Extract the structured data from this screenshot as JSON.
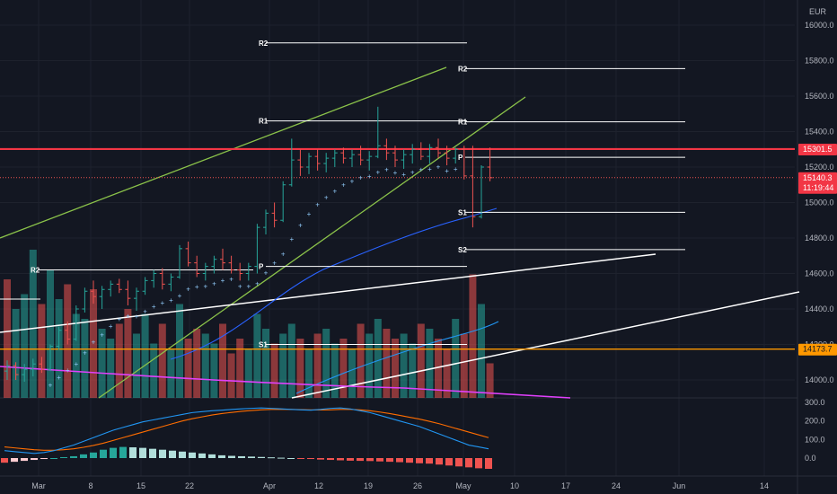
{
  "axis": {
    "currency": "EUR",
    "price_ticks": [
      "16000.0",
      "15800.0",
      "15600.0",
      "15400.0",
      "15200.0",
      "15000.0",
      "14800.0",
      "14600.0",
      "14400.0",
      "14200.0",
      "14000.0"
    ],
    "price_tick_values": [
      16000,
      15800,
      15600,
      15400,
      15200,
      15000,
      14800,
      14600,
      14400,
      14200,
      14000
    ],
    "osc_ticks": [
      "300.0",
      "200.0",
      "100.0",
      "0.0"
    ],
    "osc_tick_values": [
      300,
      200,
      100,
      0
    ],
    "date_ticks": [
      "Mar",
      "8",
      "15",
      "22",
      "Apr",
      "12",
      "19",
      "26",
      "May",
      "10",
      "17",
      "24",
      "Jun",
      "14"
    ]
  },
  "badges": {
    "resistance": {
      "label": "15301.5",
      "value": 15301.5,
      "color": "#f23645"
    },
    "last_price": {
      "label": "15140.3",
      "countdown": "11:19:44",
      "value": 15140.3,
      "color": "#f23645"
    },
    "support": {
      "label": "14173.7",
      "value": 14173.7,
      "color": "#ff9800"
    }
  },
  "pivots": [
    {
      "label": "R2",
      "value": 15900
    },
    {
      "label": "R1",
      "value": 15460
    },
    {
      "label": "P",
      "value": 14640
    },
    {
      "label": "S1",
      "value": 14200
    },
    {
      "label": "R2",
      "value": 15755
    },
    {
      "label": "R1",
      "value": 15455
    },
    {
      "label": "P",
      "value": 15255
    },
    {
      "label": "S1",
      "value": 14945
    },
    {
      "label": "S2",
      "value": 14735
    },
    {
      "label": "R2",
      "value": 14620
    }
  ],
  "colors": {
    "background": "#131722",
    "up": "#26a69a",
    "down": "#ef5350",
    "grid": "#1e222d",
    "channel": "#8bc34a",
    "trendline": "#ffffff",
    "ma": "#2962ff",
    "volume_ma": "#2196f3",
    "vwma": "#e040fb",
    "macd": "#2196f3",
    "signal": "#ff6d00",
    "resistance": "#f23645",
    "support": "#ff9800"
  },
  "chart_data": {
    "type": "candlestick",
    "instrument_currency": "EUR",
    "candles": [
      {
        "o": 14050,
        "h": 14110,
        "l": 14000,
        "c": 14080
      },
      {
        "o": 14080,
        "h": 14100,
        "l": 14000,
        "c": 14030
      },
      {
        "o": 14030,
        "h": 14090,
        "l": 13990,
        "c": 14060
      },
      {
        "o": 14060,
        "h": 14120,
        "l": 14020,
        "c": 14090
      },
      {
        "o": 14090,
        "h": 14130,
        "l": 14040,
        "c": 14060
      },
      {
        "o": 14060,
        "h": 14200,
        "l": 14050,
        "c": 14190
      },
      {
        "o": 14190,
        "h": 14300,
        "l": 14170,
        "c": 14280
      },
      {
        "o": 14280,
        "h": 14330,
        "l": 14200,
        "c": 14230
      },
      {
        "o": 14230,
        "h": 14420,
        "l": 14220,
        "c": 14400
      },
      {
        "o": 14400,
        "h": 14520,
        "l": 14380,
        "c": 14500
      },
      {
        "o": 14500,
        "h": 14560,
        "l": 14430,
        "c": 14470
      },
      {
        "o": 14470,
        "h": 14530,
        "l": 14400,
        "c": 14510
      },
      {
        "o": 14510,
        "h": 14560,
        "l": 14470,
        "c": 14540
      },
      {
        "o": 14540,
        "h": 14570,
        "l": 14490,
        "c": 14510
      },
      {
        "o": 14510,
        "h": 14560,
        "l": 14420,
        "c": 14460
      },
      {
        "o": 14460,
        "h": 14520,
        "l": 14390,
        "c": 14500
      },
      {
        "o": 14500,
        "h": 14580,
        "l": 14480,
        "c": 14560
      },
      {
        "o": 14560,
        "h": 14620,
        "l": 14520,
        "c": 14600
      },
      {
        "o": 14600,
        "h": 14630,
        "l": 14510,
        "c": 14540
      },
      {
        "o": 14540,
        "h": 14600,
        "l": 14500,
        "c": 14580
      },
      {
        "o": 14580,
        "h": 14760,
        "l": 14570,
        "c": 14740
      },
      {
        "o": 14740,
        "h": 14780,
        "l": 14640,
        "c": 14660
      },
      {
        "o": 14660,
        "h": 14700,
        "l": 14580,
        "c": 14600
      },
      {
        "o": 14600,
        "h": 14660,
        "l": 14560,
        "c": 14640
      },
      {
        "o": 14640,
        "h": 14700,
        "l": 14600,
        "c": 14680
      },
      {
        "o": 14680,
        "h": 14740,
        "l": 14620,
        "c": 14660
      },
      {
        "o": 14660,
        "h": 14700,
        "l": 14600,
        "c": 14620
      },
      {
        "o": 14620,
        "h": 14660,
        "l": 14560,
        "c": 14600
      },
      {
        "o": 14600,
        "h": 14660,
        "l": 14560,
        "c": 14640
      },
      {
        "o": 14640,
        "h": 14880,
        "l": 14600,
        "c": 14860
      },
      {
        "o": 14860,
        "h": 14960,
        "l": 14820,
        "c": 14940
      },
      {
        "o": 14940,
        "h": 15000,
        "l": 14860,
        "c": 14900
      },
      {
        "o": 14900,
        "h": 15120,
        "l": 14890,
        "c": 15100
      },
      {
        "o": 15100,
        "h": 15360,
        "l": 15090,
        "c": 15240
      },
      {
        "o": 15240,
        "h": 15300,
        "l": 15150,
        "c": 15200
      },
      {
        "o": 15200,
        "h": 15280,
        "l": 15160,
        "c": 15260
      },
      {
        "o": 15260,
        "h": 15300,
        "l": 15180,
        "c": 15220
      },
      {
        "o": 15220,
        "h": 15280,
        "l": 15170,
        "c": 15250
      },
      {
        "o": 15250,
        "h": 15300,
        "l": 15200,
        "c": 15280
      },
      {
        "o": 15280,
        "h": 15310,
        "l": 15220,
        "c": 15250
      },
      {
        "o": 15250,
        "h": 15300,
        "l": 15200,
        "c": 15270
      },
      {
        "o": 15270,
        "h": 15320,
        "l": 15210,
        "c": 15240
      },
      {
        "o": 15240,
        "h": 15290,
        "l": 15180,
        "c": 15260
      },
      {
        "o": 15260,
        "h": 15540,
        "l": 15250,
        "c": 15320
      },
      {
        "o": 15320,
        "h": 15360,
        "l": 15240,
        "c": 15280
      },
      {
        "o": 15280,
        "h": 15320,
        "l": 15200,
        "c": 15240
      },
      {
        "o": 15240,
        "h": 15300,
        "l": 15190,
        "c": 15270
      },
      {
        "o": 15270,
        "h": 15330,
        "l": 15220,
        "c": 15300
      },
      {
        "o": 15300,
        "h": 15340,
        "l": 15240,
        "c": 15260
      },
      {
        "o": 15260,
        "h": 15330,
        "l": 15220,
        "c": 15310
      },
      {
        "o": 15310,
        "h": 15360,
        "l": 15250,
        "c": 15280
      },
      {
        "o": 15280,
        "h": 15320,
        "l": 15210,
        "c": 15250
      },
      {
        "o": 15250,
        "h": 15310,
        "l": 15220,
        "c": 15300
      },
      {
        "o": 15300,
        "h": 15320,
        "l": 15130,
        "c": 15150
      },
      {
        "o": 15150,
        "h": 15320,
        "l": 14860,
        "c": 14920
      },
      {
        "o": 14920,
        "h": 15210,
        "l": 14910,
        "c": 15200
      },
      {
        "o": 15200,
        "h": 15310,
        "l": 15120,
        "c": 15140
      }
    ],
    "volume": [
      240,
      180,
      210,
      300,
      190,
      260,
      200,
      230,
      170,
      160,
      220,
      140,
      120,
      150,
      180,
      130,
      170,
      110,
      150,
      100,
      190,
      120,
      140,
      130,
      110,
      150,
      90,
      120,
      100,
      170,
      140,
      110,
      130,
      150,
      120,
      100,
      130,
      140,
      110,
      120,
      100,
      150,
      130,
      160,
      140,
      120,
      130,
      110,
      150,
      140,
      120,
      100,
      160,
      130,
      250,
      190,
      70
    ],
    "volume_up": [
      false,
      true,
      true,
      true,
      false,
      true,
      true,
      false,
      true,
      true,
      false,
      true,
      true,
      false,
      false,
      true,
      true,
      true,
      false,
      true,
      true,
      false,
      false,
      true,
      true,
      false,
      false,
      false,
      true,
      true,
      true,
      false,
      true,
      true,
      false,
      true,
      false,
      true,
      true,
      false,
      true,
      false,
      true,
      true,
      false,
      false,
      true,
      true,
      false,
      true,
      false,
      false,
      true,
      false,
      false,
      true,
      false
    ],
    "oscillator": {
      "ylim": [
        -60,
        320
      ],
      "histogram": [
        -25,
        -20,
        -15,
        -10,
        -5,
        0,
        5,
        10,
        20,
        30,
        45,
        55,
        60,
        58,
        55,
        50,
        45,
        40,
        35,
        30,
        25,
        20,
        15,
        12,
        10,
        8,
        6,
        4,
        2,
        0,
        -2,
        -5,
        -8,
        -10,
        -12,
        -14,
        -15,
        -16,
        -18,
        -20,
        -22,
        -25,
        -28,
        -30,
        -35,
        -40,
        -45,
        -50,
        -55,
        -58
      ],
      "macd": [
        40,
        35,
        30,
        25,
        30,
        40,
        55,
        70,
        90,
        110,
        130,
        150,
        165,
        180,
        195,
        205,
        215,
        225,
        235,
        245,
        250,
        255,
        258,
        262,
        265,
        268,
        270,
        268,
        265,
        262,
        260,
        258,
        262,
        268,
        270,
        265,
        255,
        245,
        230,
        215,
        200,
        185,
        170,
        150,
        130,
        110,
        90,
        70,
        60,
        50
      ],
      "signal": [
        60,
        55,
        50,
        45,
        42,
        42,
        45,
        50,
        58,
        68,
        80,
        95,
        110,
        125,
        140,
        155,
        170,
        185,
        200,
        212,
        222,
        232,
        240,
        246,
        252,
        256,
        260,
        262,
        262,
        262,
        261,
        260,
        259,
        260,
        262,
        262,
        260,
        255,
        248,
        240,
        230,
        220,
        210,
        198,
        185,
        170,
        155,
        140,
        125,
        110
      ]
    }
  }
}
